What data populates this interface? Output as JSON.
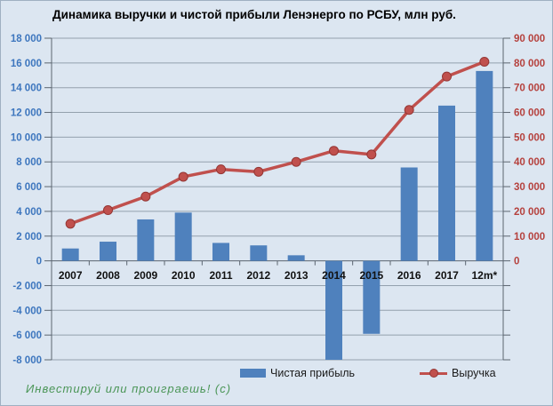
{
  "frame": {
    "background_color": "#dce6f1",
    "border_color": "#9fb0c2"
  },
  "chart": {
    "title": "Динамика выручки и чистой прибыли Ленэнерго по РСБУ, млн руб.",
    "legend": {
      "bar_label": "Чистая прибыль",
      "line_label": "Выручка"
    }
  },
  "footer": {
    "watermark": "Инвестируй или проиграешь! (c)"
  },
  "chart_data": {
    "type": "combo_bar_line",
    "title": "Динамика выручки и чистой прибыли Ленэнерго по РСБУ, млн руб.",
    "categories": [
      "2007",
      "2008",
      "2009",
      "2010",
      "2011",
      "2012",
      "2013",
      "2014",
      "2015",
      "2016",
      "2017",
      "12m*"
    ],
    "series": [
      {
        "name": "Чистая прибыль",
        "type": "bar",
        "axis": "left",
        "values": [
          1000,
          1550,
          3350,
          3900,
          1450,
          1250,
          450,
          -8000,
          -5900,
          7550,
          12550,
          15350
        ]
      },
      {
        "name": "Выручка",
        "type": "line",
        "axis": "right",
        "values": [
          15000,
          20500,
          26000,
          34000,
          37000,
          36000,
          40000,
          44500,
          43000,
          61000,
          74500,
          80500
        ]
      }
    ],
    "left_axis": {
      "min": -8000,
      "max": 18000,
      "step": 2000,
      "tick_labels": [
        "18 000",
        "16 000",
        "14 000",
        "12 000",
        "10 000",
        "8 000",
        "6 000",
        "4 000",
        "2 000",
        "0",
        "-2 000",
        "-4 000",
        "-6 000",
        "-8 000"
      ]
    },
    "right_axis": {
      "min": 0,
      "max": 90000,
      "step": 10000,
      "tick_labels": [
        "90 000",
        "80 000",
        "70 000",
        "60 000",
        "50 000",
        "40 000",
        "30 000",
        "20 000",
        "10 000",
        "0"
      ]
    },
    "grid": true,
    "legend_position": "bottom",
    "colors": {
      "bar": "#4f81bd",
      "line": "#c0504d",
      "marker_edge": "#943634",
      "grid": "#93a0ad",
      "axis": "#5b6570",
      "left_labels": "#3d76be",
      "right_labels": "#b5413d",
      "x_labels": "#111111"
    }
  }
}
